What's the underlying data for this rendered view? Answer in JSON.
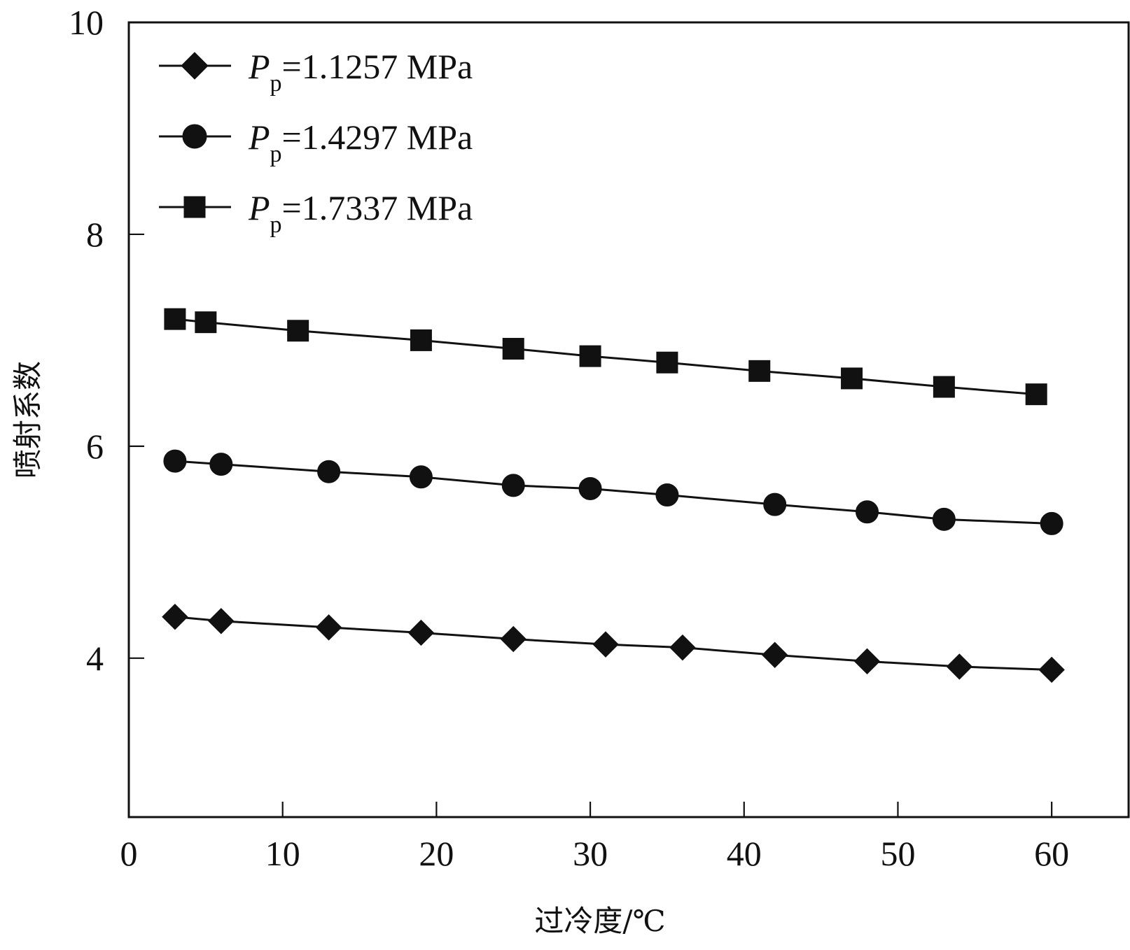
{
  "chart_data": {
    "type": "line",
    "title": "",
    "xlabel": "过冷度/℃",
    "ylabel": "喷射系数",
    "xlim": [
      0,
      65
    ],
    "ylim": [
      2.5,
      10
    ],
    "x_ticks": [
      "0",
      "10",
      "20",
      "30",
      "40",
      "50",
      "60"
    ],
    "y_ticks": [
      "4",
      "6",
      "8",
      "10"
    ],
    "grid": false,
    "legend_position": "top-left",
    "colors": {
      "line": "#111111",
      "marker": "#111111",
      "axis": "#111111"
    },
    "series": [
      {
        "name": "Pp=1.1257 MPa",
        "legend_main": "P",
        "legend_sub": "p",
        "legend_value": "=1.1257 MPa",
        "marker": "diamond",
        "x": [
          3,
          6,
          13,
          19,
          25,
          31,
          36,
          42,
          48,
          54,
          60
        ],
        "y": [
          4.39,
          4.35,
          4.29,
          4.24,
          4.18,
          4.13,
          4.1,
          4.03,
          3.97,
          3.92,
          3.89
        ]
      },
      {
        "name": "Pp=1.4297 MPa",
        "legend_main": "P",
        "legend_sub": "p",
        "legend_value": "=1.4297 MPa",
        "marker": "circle",
        "x": [
          3,
          6,
          13,
          19,
          25,
          30,
          35,
          42,
          48,
          53,
          60
        ],
        "y": [
          5.86,
          5.83,
          5.76,
          5.71,
          5.63,
          5.6,
          5.54,
          5.45,
          5.38,
          5.31,
          5.27
        ]
      },
      {
        "name": "Pp=1.7337 MPa",
        "legend_main": "P",
        "legend_sub": "p",
        "legend_value": "=1.7337 MPa",
        "marker": "square",
        "x": [
          3,
          5,
          11,
          19,
          25,
          30,
          35,
          41,
          47,
          53,
          59
        ],
        "y": [
          7.2,
          7.17,
          7.09,
          7.0,
          6.92,
          6.85,
          6.79,
          6.71,
          6.64,
          6.56,
          6.49
        ]
      }
    ]
  }
}
